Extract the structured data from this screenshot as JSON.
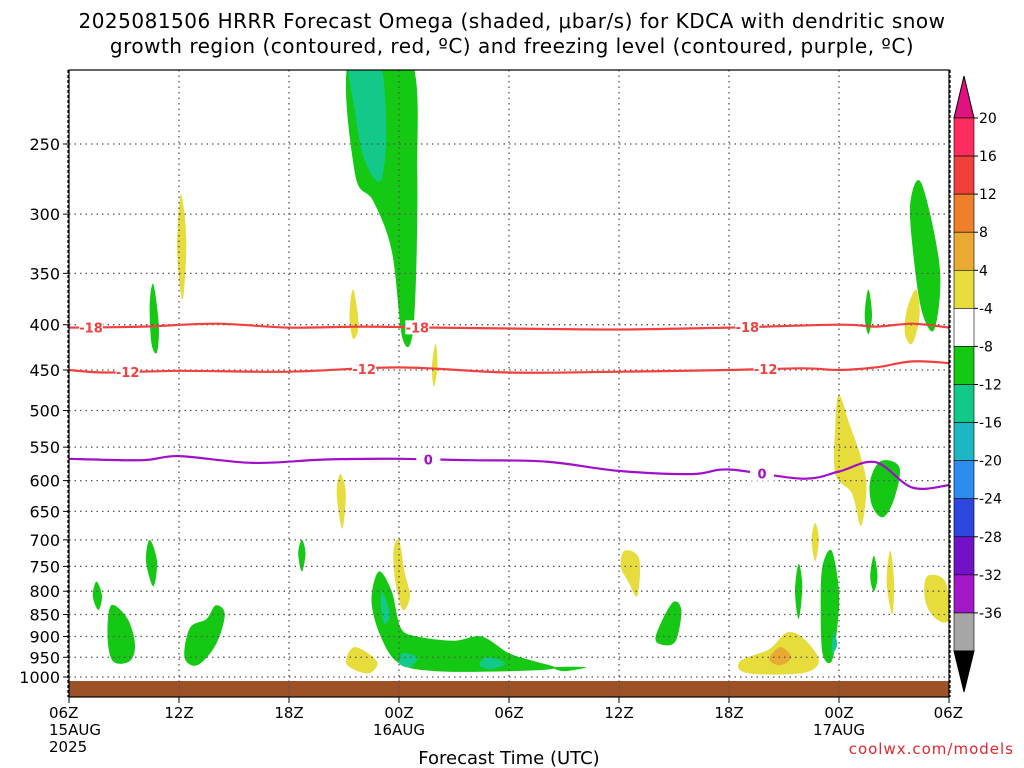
{
  "title": {
    "line1": "2025081506 HRRR Forecast Omega (shaded, μbar/s) for KDCA with dendritic snow",
    "line2": "growth region (contoured, red, ºC) and freezing level (contoured, purple, ºC)"
  },
  "credit": "coolwx.com/models",
  "chart_data": {
    "type": "time-pressure cross section",
    "xlabel": "Forecast Time (UTC)",
    "x_ticks": [
      {
        "label": "06Z",
        "sub": [
          "15AUG",
          "2025"
        ],
        "hours": 0
      },
      {
        "label": "12Z",
        "sub": [],
        "hours": 6
      },
      {
        "label": "18Z",
        "sub": [],
        "hours": 12
      },
      {
        "label": "00Z",
        "sub": [
          "16AUG"
        ],
        "hours": 18
      },
      {
        "label": "06Z",
        "sub": [],
        "hours": 24
      },
      {
        "label": "12Z",
        "sub": [],
        "hours": 30
      },
      {
        "label": "18Z",
        "sub": [],
        "hours": 36
      },
      {
        "label": "00Z",
        "sub": [
          "17AUG"
        ],
        "hours": 42
      },
      {
        "label": "06Z",
        "sub": [],
        "hours": 48
      }
    ],
    "y_ticks": [
      250,
      300,
      350,
      400,
      450,
      500,
      550,
      600,
      650,
      700,
      750,
      800,
      850,
      900,
      950,
      1000
    ],
    "ylim": [
      200,
      1020
    ],
    "y_scale": "log",
    "colorbar": {
      "labels": [
        "20",
        "16",
        "12",
        "8",
        "4",
        "-4",
        "-8",
        "-12",
        "-16",
        "-20",
        "-24",
        "-28",
        "-32",
        "-36"
      ],
      "colors": [
        "#ff2d5f",
        "#f0403c",
        "#ef7f2a",
        "#e9aa34",
        "#e6dc3c",
        "#ffffff",
        "#14c814",
        "#13c98a",
        "#1cb7c2",
        "#2c8cef",
        "#2d46e0",
        "#7211c6",
        "#a118c8",
        "#a6a6a6"
      ],
      "top_arrow": "#e0137e",
      "bottom_arrow": "#000000"
    },
    "contours": [
      {
        "value": -18,
        "color": "#f04040",
        "points": [
          [
            0,
            403
          ],
          [
            4,
            402
          ],
          [
            8,
            399
          ],
          [
            12,
            403
          ],
          [
            16,
            402
          ],
          [
            20,
            403
          ],
          [
            24,
            404
          ],
          [
            30,
            405
          ],
          [
            36,
            403
          ],
          [
            42,
            400
          ],
          [
            44,
            402
          ],
          [
            46,
            399
          ],
          [
            48,
            403
          ]
        ]
      },
      {
        "value": -12,
        "color": "#f04040",
        "points": [
          [
            0,
            450
          ],
          [
            2,
            453
          ],
          [
            6,
            451
          ],
          [
            12,
            452
          ],
          [
            18,
            447
          ],
          [
            24,
            453
          ],
          [
            30,
            452
          ],
          [
            36,
            450
          ],
          [
            40,
            448
          ],
          [
            42,
            450
          ],
          [
            44,
            447
          ],
          [
            46,
            440
          ],
          [
            48,
            442
          ]
        ]
      },
      {
        "value": 0,
        "color": "#a010c8",
        "points": [
          [
            0,
            567
          ],
          [
            4,
            569
          ],
          [
            6,
            563
          ],
          [
            10,
            573
          ],
          [
            14,
            568
          ],
          [
            18,
            567
          ],
          [
            22,
            569
          ],
          [
            26,
            571
          ],
          [
            30,
            585
          ],
          [
            34,
            590
          ],
          [
            36,
            583
          ],
          [
            40,
            597
          ],
          [
            42,
            586
          ],
          [
            44,
            572
          ],
          [
            46,
            611
          ],
          [
            48,
            607
          ]
        ]
      }
    ],
    "contour_label_hours": {
      "-18": [
        1.2,
        19.0,
        37.0
      ],
      "-12": [
        3.2,
        16.1,
        38.0
      ],
      "0": [
        19.6,
        37.8
      ]
    },
    "omega_features": [
      {
        "value": -8,
        "color": "#14c814",
        "points": [
          [
            15.3,
            200
          ],
          [
            18.6,
            200
          ],
          [
            19.0,
            270
          ],
          [
            18.8,
            400
          ],
          [
            18.2,
            415
          ],
          [
            17.6,
            330
          ],
          [
            16.6,
            290
          ],
          [
            15.6,
            270
          ]
        ]
      },
      {
        "value": -12,
        "color": "#13c98a",
        "points": [
          [
            15.3,
            200
          ],
          [
            16.9,
            200
          ],
          [
            17.3,
            240
          ],
          [
            17.0,
            275
          ],
          [
            16.1,
            260
          ],
          [
            15.6,
            230
          ]
        ]
      },
      {
        "value": 4,
        "color": "#e6dc3c",
        "points": [
          [
            6.1,
            285
          ],
          [
            6.4,
            320
          ],
          [
            6.2,
            375
          ],
          [
            5.9,
            330
          ]
        ]
      },
      {
        "value": -8,
        "color": "#14c814",
        "points": [
          [
            4.6,
            360
          ],
          [
            4.9,
            400
          ],
          [
            4.8,
            430
          ],
          [
            4.5,
            420
          ],
          [
            4.4,
            380
          ]
        ]
      },
      {
        "value": 4,
        "color": "#e6dc3c",
        "points": [
          [
            15.5,
            365
          ],
          [
            15.8,
            400
          ],
          [
            15.5,
            415
          ],
          [
            15.3,
            390
          ]
        ]
      },
      {
        "value": 4,
        "color": "#e6dc3c",
        "points": [
          [
            20.0,
            420
          ],
          [
            20.1,
            445
          ],
          [
            19.9,
            470
          ],
          [
            19.8,
            445
          ]
        ]
      },
      {
        "value": -8,
        "color": "#14c814",
        "points": [
          [
            46.5,
            277
          ],
          [
            47.5,
            345
          ],
          [
            47.2,
            405
          ],
          [
            46.5,
            385
          ],
          [
            46.0,
            325
          ],
          [
            45.9,
            290
          ]
        ]
      },
      {
        "value": 4,
        "color": "#e6dc3c",
        "points": [
          [
            46.2,
            365
          ],
          [
            46.4,
            390
          ],
          [
            46.0,
            420
          ],
          [
            45.6,
            410
          ],
          [
            45.7,
            385
          ]
        ]
      },
      {
        "value": -8,
        "color": "#14c814",
        "points": [
          [
            43.6,
            365
          ],
          [
            43.8,
            390
          ],
          [
            43.6,
            410
          ],
          [
            43.4,
            390
          ]
        ]
      },
      {
        "value": 4,
        "color": "#e6dc3c",
        "points": [
          [
            42.0,
            480
          ],
          [
            42.6,
            520
          ],
          [
            43.2,
            565
          ],
          [
            43.5,
            610
          ],
          [
            43.2,
            675
          ],
          [
            42.7,
            620
          ],
          [
            41.8,
            590
          ],
          [
            41.8,
            520
          ]
        ]
      },
      {
        "value": -8,
        "color": "#14c814",
        "points": [
          [
            44.3,
            570
          ],
          [
            45.3,
            580
          ],
          [
            45.0,
            630
          ],
          [
            44.4,
            660
          ],
          [
            43.8,
            640
          ],
          [
            43.7,
            600
          ]
        ]
      },
      {
        "value": 4,
        "color": "#e6dc3c",
        "points": [
          [
            14.8,
            590
          ],
          [
            15.1,
            620
          ],
          [
            14.9,
            680
          ],
          [
            14.6,
            620
          ]
        ]
      },
      {
        "value": -8,
        "color": "#14c814",
        "points": [
          [
            12.7,
            700
          ],
          [
            12.9,
            725
          ],
          [
            12.7,
            760
          ],
          [
            12.5,
            725
          ]
        ]
      },
      {
        "value": -8,
        "color": "#14c814",
        "points": [
          [
            4.4,
            700
          ],
          [
            4.8,
            740
          ],
          [
            4.6,
            790
          ],
          [
            4.2,
            740
          ]
        ]
      },
      {
        "value": -8,
        "color": "#14c814",
        "points": [
          [
            1.5,
            780
          ],
          [
            1.8,
            810
          ],
          [
            1.6,
            840
          ],
          [
            1.3,
            810
          ]
        ]
      },
      {
        "value": -8,
        "color": "#14c814",
        "points": [
          [
            2.3,
            830
          ],
          [
            3.2,
            860
          ],
          [
            3.6,
            920
          ],
          [
            3.3,
            960
          ],
          [
            2.4,
            960
          ],
          [
            2.1,
            900
          ]
        ]
      },
      {
        "value": -8,
        "color": "#14c814",
        "points": [
          [
            8.0,
            830
          ],
          [
            8.5,
            850
          ],
          [
            8.0,
            920
          ],
          [
            7.0,
            970
          ],
          [
            6.3,
            950
          ],
          [
            6.6,
            880
          ],
          [
            7.5,
            860
          ]
        ]
      },
      {
        "value": 4,
        "color": "#e6dc3c",
        "points": [
          [
            18.0,
            700
          ],
          [
            18.3,
            760
          ],
          [
            18.6,
            810
          ],
          [
            18.2,
            840
          ],
          [
            17.8,
            780
          ],
          [
            17.7,
            720
          ]
        ]
      },
      {
        "value": -8,
        "color": "#14c814",
        "points": [
          [
            16.9,
            760
          ],
          [
            17.6,
            800
          ],
          [
            18.1,
            880
          ],
          [
            19.0,
            900
          ],
          [
            21.0,
            910
          ],
          [
            22.5,
            900
          ],
          [
            24.0,
            940
          ],
          [
            25.4,
            960
          ],
          [
            26.5,
            978
          ],
          [
            24,
            985
          ],
          [
            20,
            985
          ],
          [
            18.0,
            965
          ],
          [
            17.0,
            900
          ],
          [
            16.5,
            820
          ]
        ]
      },
      {
        "value": -12,
        "color": "#13c98a",
        "points": [
          [
            17.1,
            800
          ],
          [
            17.5,
            850
          ],
          [
            17.2,
            870
          ],
          [
            17.0,
            830
          ]
        ]
      },
      {
        "value": -12,
        "color": "#13c98a",
        "points": [
          [
            22.8,
            950
          ],
          [
            23.8,
            965
          ],
          [
            23.0,
            980
          ],
          [
            22.4,
            970
          ]
        ]
      },
      {
        "value": -12,
        "color": "#13c98a",
        "points": [
          [
            18.2,
            940
          ],
          [
            19.0,
            950
          ],
          [
            18.6,
            975
          ],
          [
            18.0,
            965
          ]
        ]
      },
      {
        "value": -8,
        "color": "#14c814",
        "points": [
          [
            26.5,
            975
          ],
          [
            28.2,
            975
          ],
          [
            27.0,
            985
          ]
        ]
      },
      {
        "value": 4,
        "color": "#e6dc3c",
        "points": [
          [
            15.6,
            925
          ],
          [
            16.8,
            960
          ],
          [
            16.4,
            990
          ],
          [
            15.5,
            980
          ],
          [
            15.1,
            960
          ]
        ]
      },
      {
        "value": 4,
        "color": "#e6dc3c",
        "points": [
          [
            30.3,
            720
          ],
          [
            31.1,
            735
          ],
          [
            31.0,
            810
          ],
          [
            30.5,
            780
          ],
          [
            30.1,
            750
          ]
        ]
      },
      {
        "value": -8,
        "color": "#14c814",
        "points": [
          [
            32.9,
            825
          ],
          [
            33.4,
            840
          ],
          [
            33.1,
            910
          ],
          [
            32.4,
            920
          ],
          [
            32.0,
            900
          ]
        ]
      },
      {
        "value": 4,
        "color": "#e6dc3c",
        "points": [
          [
            39.2,
            890
          ],
          [
            40.2,
            910
          ],
          [
            40.9,
            960
          ],
          [
            40.0,
            990
          ],
          [
            37.0,
            990
          ],
          [
            36.6,
            960
          ],
          [
            38.2,
            930
          ]
        ]
      },
      {
        "value": 8,
        "color": "#e9aa34",
        "points": [
          [
            38.8,
            925
          ],
          [
            39.4,
            950
          ],
          [
            38.8,
            970
          ],
          [
            38.2,
            955
          ]
        ]
      },
      {
        "value": 4,
        "color": "#e6dc3c",
        "points": [
          [
            40.7,
            670
          ],
          [
            40.9,
            700
          ],
          [
            40.7,
            740
          ],
          [
            40.5,
            700
          ]
        ]
      },
      {
        "value": -8,
        "color": "#14c814",
        "points": [
          [
            39.8,
            745
          ],
          [
            40.0,
            790
          ],
          [
            39.8,
            860
          ],
          [
            39.6,
            800
          ]
        ]
      },
      {
        "value": -8,
        "color": "#14c814",
        "points": [
          [
            41.6,
            720
          ],
          [
            42.0,
            800
          ],
          [
            41.9,
            880
          ],
          [
            41.6,
            960
          ],
          [
            41.1,
            940
          ],
          [
            41.0,
            830
          ],
          [
            41.1,
            750
          ]
        ]
      },
      {
        "value": -12,
        "color": "#13c98a",
        "points": [
          [
            41.7,
            890
          ],
          [
            41.9,
            920
          ],
          [
            41.6,
            940
          ]
        ]
      },
      {
        "value": -8,
        "color": "#14c814",
        "points": [
          [
            43.9,
            730
          ],
          [
            44.1,
            770
          ],
          [
            43.9,
            800
          ],
          [
            43.7,
            770
          ]
        ]
      },
      {
        "value": 4,
        "color": "#e6dc3c",
        "points": [
          [
            44.8,
            720
          ],
          [
            45.0,
            780
          ],
          [
            44.9,
            850
          ],
          [
            44.6,
            780
          ]
        ]
      },
      {
        "value": 4,
        "color": "#e6dc3c",
        "points": [
          [
            46.8,
            770
          ],
          [
            47.8,
            780
          ],
          [
            48.0,
            860
          ],
          [
            47.3,
            860
          ],
          [
            46.7,
            820
          ]
        ]
      }
    ],
    "ground_color": "#9c5226"
  }
}
